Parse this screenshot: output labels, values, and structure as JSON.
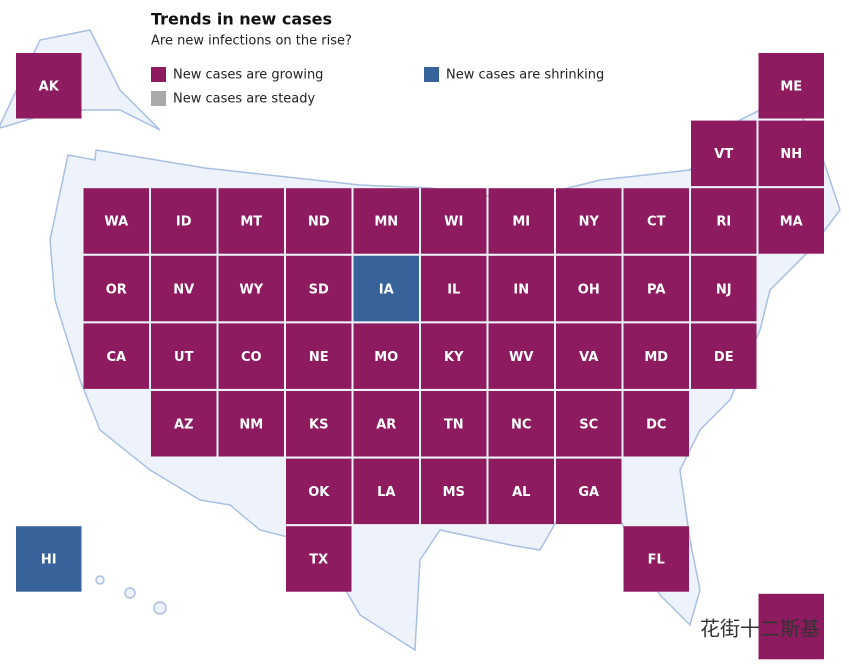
{
  "header": {
    "title": "Trends in new cases",
    "subtitle": "Are new infections on the rise?"
  },
  "legend": [
    {
      "name": "New cases are growing",
      "color": "#8e1b5f"
    },
    {
      "name": "New cases are steady",
      "color": "#a9a9a9"
    },
    {
      "name": "New cases are shrinking",
      "color": "#38629a"
    }
  ],
  "states": [
    {
      "label": "AK",
      "status": 0
    },
    {
      "label": "ME",
      "status": 0
    },
    {
      "label": "VT",
      "status": 0
    },
    {
      "label": "NH",
      "status": 0
    },
    {
      "label": "WA",
      "status": 0
    },
    {
      "label": "ID",
      "status": 0
    },
    {
      "label": "MT",
      "status": 0
    },
    {
      "label": "ND",
      "status": 0
    },
    {
      "label": "MN",
      "status": 0
    },
    {
      "label": "WI",
      "status": 0
    },
    {
      "label": "MI",
      "status": 0
    },
    {
      "label": "NY",
      "status": 0
    },
    {
      "label": "CT",
      "status": 0
    },
    {
      "label": "RI",
      "status": 0
    },
    {
      "label": "MA",
      "status": 0
    },
    {
      "label": "OR",
      "status": 0
    },
    {
      "label": "NV",
      "status": 0
    },
    {
      "label": "WY",
      "status": 0
    },
    {
      "label": "SD",
      "status": 0
    },
    {
      "label": "IA",
      "status": 2
    },
    {
      "label": "IL",
      "status": 0
    },
    {
      "label": "IN",
      "status": 0
    },
    {
      "label": "OH",
      "status": 0
    },
    {
      "label": "PA",
      "status": 0
    },
    {
      "label": "NJ",
      "status": 0
    },
    {
      "label": "CA",
      "status": 0
    },
    {
      "label": "UT",
      "status": 0
    },
    {
      "label": "CO",
      "status": 0
    },
    {
      "label": "NE",
      "status": 0
    },
    {
      "label": "MO",
      "status": 0
    },
    {
      "label": "KY",
      "status": 0
    },
    {
      "label": "WV",
      "status": 0
    },
    {
      "label": "VA",
      "status": 0
    },
    {
      "label": "MD",
      "status": 0
    },
    {
      "label": "DE",
      "status": 0
    },
    {
      "label": "AZ",
      "status": 0
    },
    {
      "label": "NM",
      "status": 0
    },
    {
      "label": "KS",
      "status": 0
    },
    {
      "label": "AR",
      "status": 0
    },
    {
      "label": "TN",
      "status": 0
    },
    {
      "label": "NC",
      "status": 0
    },
    {
      "label": "SC",
      "status": 0
    },
    {
      "label": "DC",
      "status": 0
    },
    {
      "label": "OK",
      "status": 0
    },
    {
      "label": "LA",
      "status": 0
    },
    {
      "label": "MS",
      "status": 0
    },
    {
      "label": "AL",
      "status": 0
    },
    {
      "label": "GA",
      "status": 0
    },
    {
      "label": "HI",
      "status": 2
    },
    {
      "label": "TX",
      "status": 0
    },
    {
      "label": "FL",
      "status": 0
    },
    {
      "label": null,
      "status": 0
    }
  ],
  "watermark": "花街十二斯基"
}
